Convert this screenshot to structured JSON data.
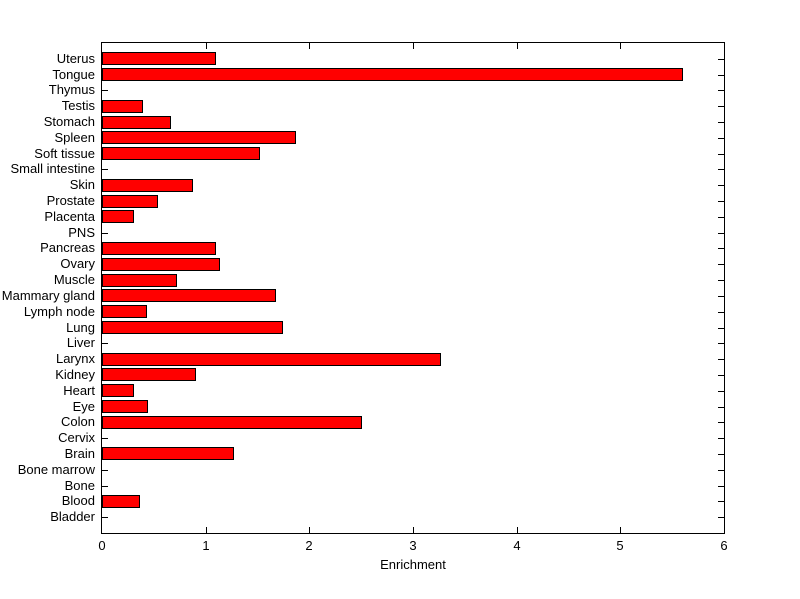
{
  "chart_data": {
    "type": "bar",
    "orientation": "horizontal",
    "title": "",
    "xlabel": "Enrichment",
    "ylabel": "",
    "xlim": [
      0,
      6
    ],
    "xticks": [
      0,
      1,
      2,
      3,
      4,
      5,
      6
    ],
    "xtick_labels": [
      "0",
      "1",
      "2",
      "3",
      "4",
      "5",
      "6"
    ],
    "grid": false,
    "legend": "none",
    "bar_color": "#FF0000",
    "bar_edge_color": "#000000",
    "axis_color": "#000000",
    "background_color": "#FFFFFF",
    "categories": [
      "Uterus",
      "Tongue",
      "Thymus",
      "Testis",
      "Stomach",
      "Spleen",
      "Soft tissue",
      "Small intestine",
      "Skin",
      "Prostate",
      "Placenta",
      "PNS",
      "Pancreas",
      "Ovary",
      "Muscle",
      "Mammary gland",
      "Lymph node",
      "Lung",
      "Liver",
      "Larynx",
      "Kidney",
      "Heart",
      "Eye",
      "Colon",
      "Cervix",
      "Brain",
      "Bone marrow",
      "Bone",
      "Blood",
      "Bladder"
    ],
    "values": [
      1.1,
      5.6,
      0,
      0.4,
      0.67,
      1.87,
      1.52,
      0,
      0.88,
      0.54,
      0.31,
      0,
      1.1,
      1.14,
      0.72,
      1.68,
      0.43,
      1.75,
      0,
      3.27,
      0.91,
      0.31,
      0.44,
      2.51,
      0,
      1.27,
      0,
      0,
      0.37,
      0
    ]
  }
}
